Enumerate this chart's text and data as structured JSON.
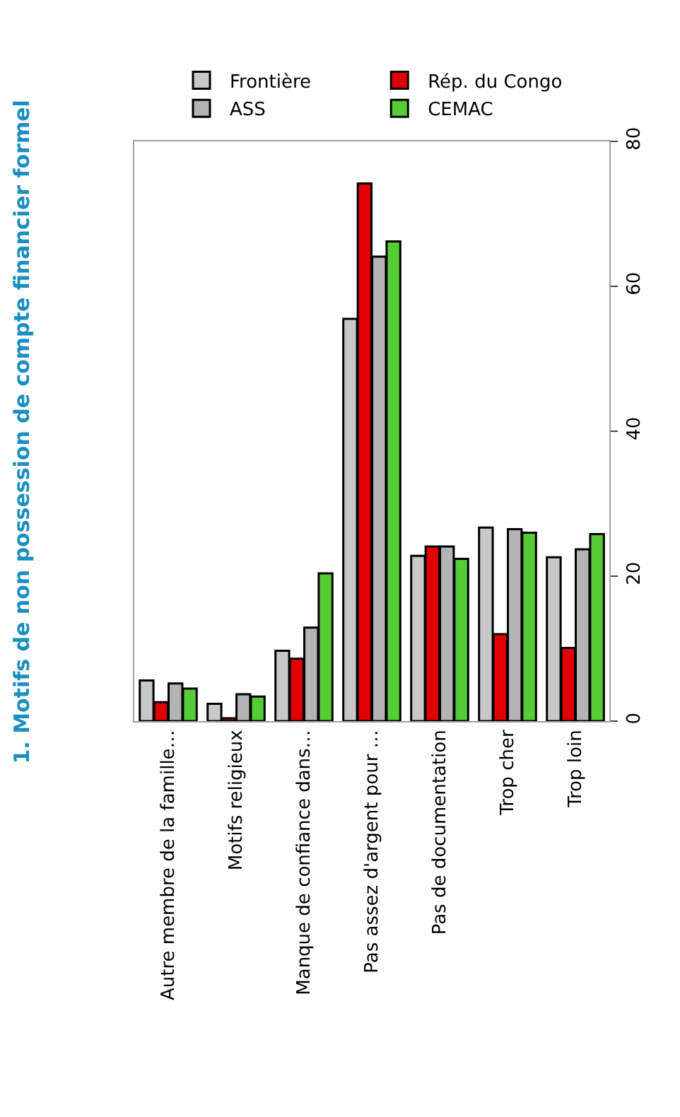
{
  "chart_data": {
    "type": "bar",
    "title": "1. Motifs de non possession de compte financier formel",
    "categories": [
      "Autre membre de la famille…",
      "Motifs religieux",
      "Manque de confiance dans…",
      "Pas assez d'argent pour …",
      "Pas de documentation",
      "Trop cher",
      "Trop loin"
    ],
    "series": [
      {
        "name": "Frontière",
        "color": "#c8c8c8",
        "values": [
          5.6,
          2.4,
          9.7,
          55.5,
          22.8,
          26.7,
          22.6
        ]
      },
      {
        "name": "Rép. du Congo",
        "color": "#e00000",
        "values": [
          2.6,
          0.4,
          8.6,
          74.2,
          24.1,
          12.0,
          10.1
        ]
      },
      {
        "name": "ASS",
        "color": "#b4b4b4",
        "values": [
          5.2,
          3.7,
          12.9,
          64.1,
          24.1,
          26.5,
          23.7
        ]
      },
      {
        "name": "CEMAC",
        "color": "#55cc33",
        "values": [
          4.5,
          3.4,
          20.4,
          66.2,
          22.4,
          26.0,
          25.8
        ]
      }
    ],
    "ylim": [
      0,
      80
    ],
    "yticks": [
      0,
      20,
      40,
      60,
      80
    ],
    "legend": "top"
  }
}
